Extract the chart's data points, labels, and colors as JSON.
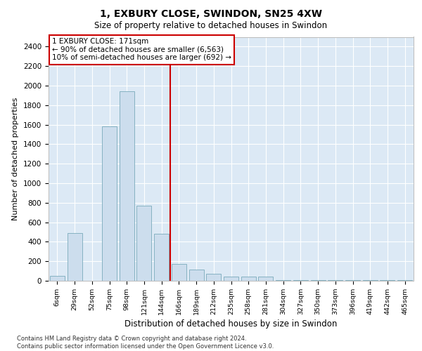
{
  "title": "1, EXBURY CLOSE, SWINDON, SN25 4XW",
  "subtitle": "Size of property relative to detached houses in Swindon",
  "xlabel": "Distribution of detached houses by size in Swindon",
  "ylabel": "Number of detached properties",
  "categories": [
    "6sqm",
    "29sqm",
    "52sqm",
    "75sqm",
    "98sqm",
    "121sqm",
    "144sqm",
    "166sqm",
    "189sqm",
    "212sqm",
    "235sqm",
    "258sqm",
    "281sqm",
    "304sqm",
    "327sqm",
    "350sqm",
    "373sqm",
    "396sqm",
    "419sqm",
    "442sqm",
    "465sqm"
  ],
  "values": [
    50,
    490,
    0,
    1580,
    1940,
    770,
    480,
    175,
    115,
    70,
    45,
    45,
    45,
    5,
    5,
    5,
    5,
    5,
    5,
    5,
    5
  ],
  "bar_color": "#ccdded",
  "bar_edge_color": "#7aaabb",
  "property_line_index": 7,
  "property_line_color": "#cc0000",
  "annotation_line1": "1 EXBURY CLOSE: 171sqm",
  "annotation_line2": "← 90% of detached houses are smaller (6,563)",
  "annotation_line3": "10% of semi-detached houses are larger (692) →",
  "annotation_box_edgecolor": "#cc0000",
  "ylim": [
    0,
    2500
  ],
  "yticks": [
    0,
    200,
    400,
    600,
    800,
    1000,
    1200,
    1400,
    1600,
    1800,
    2000,
    2200,
    2400
  ],
  "background_color": "#dce9f5",
  "grid_color": "#ffffff",
  "title_fontsize": 10,
  "subtitle_fontsize": 8.5,
  "footer_line1": "Contains HM Land Registry data © Crown copyright and database right 2024.",
  "footer_line2": "Contains public sector information licensed under the Open Government Licence v3.0."
}
